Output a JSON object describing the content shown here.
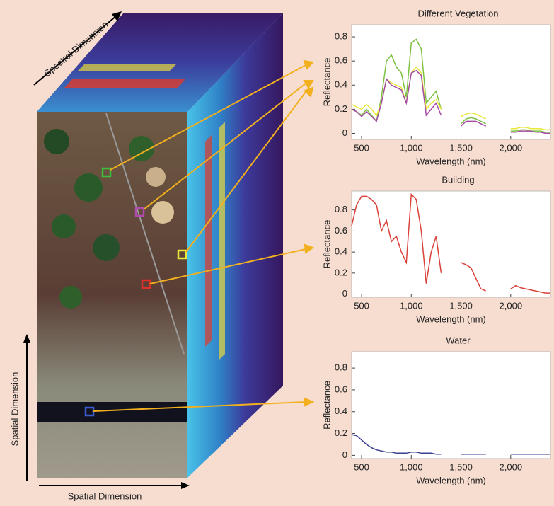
{
  "figure": {
    "spectral_label": "Spectral Dimension",
    "spatial_vertical": "Spatial Dimension",
    "spatial_horizontal": "Spatial Dimension"
  },
  "chart_data": [
    {
      "type": "line",
      "title": "Different Vegetation",
      "xlabel": "Wavelength (nm)",
      "ylabel": "Reflectance",
      "x": [
        400,
        450,
        500,
        550,
        600,
        650,
        700,
        750,
        800,
        850,
        900,
        950,
        1000,
        1050,
        1100,
        1150,
        1200,
        1250,
        1300,
        1350,
        1400,
        1450,
        1500,
        1550,
        1600,
        1650,
        1700,
        1750,
        1800,
        1850,
        1900,
        1950,
        2000,
        2050,
        2100,
        2150,
        2200,
        2250,
        2300,
        2350,
        2400
      ],
      "series": [
        {
          "color": "#7cc242",
          "values": [
            0.2,
            0.18,
            0.15,
            0.2,
            0.15,
            0.1,
            0.3,
            0.6,
            0.65,
            0.55,
            0.5,
            0.3,
            0.75,
            0.78,
            0.7,
            0.25,
            0.3,
            0.35,
            0.2,
            null,
            null,
            null,
            0.08,
            0.12,
            0.13,
            0.12,
            0.1,
            0.08,
            null,
            null,
            null,
            null,
            0.02,
            0.02,
            0.03,
            0.03,
            0.02,
            0.02,
            0.02,
            0.01,
            0.01
          ]
        },
        {
          "color": "#e8e83a",
          "values": [
            0.24,
            0.22,
            0.2,
            0.24,
            0.2,
            0.15,
            0.25,
            0.45,
            0.42,
            0.4,
            0.38,
            0.25,
            0.5,
            0.55,
            0.5,
            0.2,
            0.25,
            0.28,
            0.2,
            null,
            null,
            null,
            0.14,
            0.16,
            0.17,
            0.16,
            0.14,
            0.12,
            null,
            null,
            null,
            null,
            0.04,
            0.04,
            0.05,
            0.05,
            0.04,
            0.04,
            0.04,
            0.03,
            0.03
          ]
        },
        {
          "color": "#a64ca6",
          "values": [
            0.2,
            0.18,
            0.14,
            0.18,
            0.14,
            0.1,
            0.25,
            0.45,
            0.4,
            0.38,
            0.36,
            0.25,
            0.5,
            0.52,
            0.48,
            0.15,
            0.2,
            0.25,
            0.15,
            null,
            null,
            null,
            0.06,
            0.1,
            0.1,
            0.1,
            0.08,
            0.06,
            null,
            null,
            null,
            null,
            0.01,
            0.01,
            0.02,
            0.02,
            0.02,
            0.01,
            0.01,
            0,
            0
          ]
        }
      ],
      "xlim": [
        400,
        2400
      ],
      "xticks": [
        500,
        {
          "value": 1000,
          "label": "1,000"
        },
        {
          "value": 1500,
          "label": "1,500"
        },
        {
          "value": 2000,
          "label": "2,000"
        }
      ],
      "ylim": [
        -0.05,
        0.9
      ],
      "yticks": [
        0,
        0.2,
        0.4,
        0.6,
        0.8
      ]
    },
    {
      "type": "line",
      "title": "Building",
      "xlabel": "Wavelength (nm)",
      "ylabel": "Reflectance",
      "x": [
        400,
        450,
        500,
        550,
        600,
        650,
        700,
        750,
        800,
        850,
        900,
        950,
        1000,
        1050,
        1100,
        1150,
        1200,
        1250,
        1300,
        1350,
        1400,
        1450,
        1500,
        1550,
        1600,
        1650,
        1700,
        1750,
        1800,
        1850,
        1900,
        1950,
        2000,
        2050,
        2100,
        2150,
        2200,
        2250,
        2300,
        2350,
        2400
      ],
      "series": [
        {
          "color": "#d9423a",
          "values": [
            0.65,
            0.85,
            0.93,
            0.93,
            0.9,
            0.85,
            0.6,
            0.7,
            0.5,
            0.55,
            0.4,
            0.3,
            0.95,
            0.9,
            0.6,
            0.1,
            0.4,
            0.55,
            0.2,
            null,
            null,
            null,
            0.3,
            0.28,
            0.25,
            0.15,
            0.05,
            0.03,
            null,
            null,
            null,
            null,
            0.05,
            0.08,
            0.06,
            0.05,
            0.04,
            0.03,
            0.02,
            0.01,
            0.01
          ]
        }
      ],
      "xlim": [
        400,
        2400
      ],
      "xticks": [
        500,
        {
          "value": 1000,
          "label": "1,000"
        },
        {
          "value": 1500,
          "label": "1,500"
        },
        {
          "value": 2000,
          "label": "2,000"
        }
      ],
      "ylim": [
        -0.03,
        0.98
      ],
      "yticks": [
        0,
        0.2,
        0.4,
        0.6,
        0.8
      ]
    },
    {
      "type": "line",
      "title": "Water",
      "xlabel": "Wavelength (nm)",
      "ylabel": "Reflectance",
      "x": [
        400,
        450,
        500,
        550,
        600,
        650,
        700,
        750,
        800,
        850,
        900,
        950,
        1000,
        1050,
        1100,
        1150,
        1200,
        1250,
        1300,
        1350,
        1400,
        1450,
        1500,
        1550,
        1600,
        1650,
        1700,
        1750,
        1800,
        1850,
        1900,
        1950,
        2000,
        2050,
        2100,
        2150,
        2200,
        2250,
        2300,
        2350,
        2400
      ],
      "series": [
        {
          "color": "#3a3f8f",
          "values": [
            0.19,
            0.18,
            0.14,
            0.1,
            0.07,
            0.05,
            0.04,
            0.03,
            0.03,
            0.02,
            0.02,
            0.02,
            0.03,
            0.03,
            0.02,
            0.02,
            0.02,
            0.01,
            0.01,
            null,
            null,
            null,
            0.01,
            0.01,
            0.01,
            0.01,
            0.01,
            0.01,
            null,
            null,
            null,
            null,
            0.01,
            0.01,
            0.01,
            0.01,
            0.01,
            0.01,
            0.01,
            0.01,
            0.01
          ]
        }
      ],
      "xlim": [
        400,
        2400
      ],
      "xticks": [
        500,
        {
          "value": 1000,
          "label": "1,000"
        },
        {
          "value": 1500,
          "label": "1,500"
        },
        {
          "value": 2000,
          "label": "2,000"
        }
      ],
      "ylim": [
        -0.03,
        0.95
      ],
      "yticks": [
        0,
        0.2,
        0.4,
        0.6,
        0.8
      ]
    }
  ]
}
